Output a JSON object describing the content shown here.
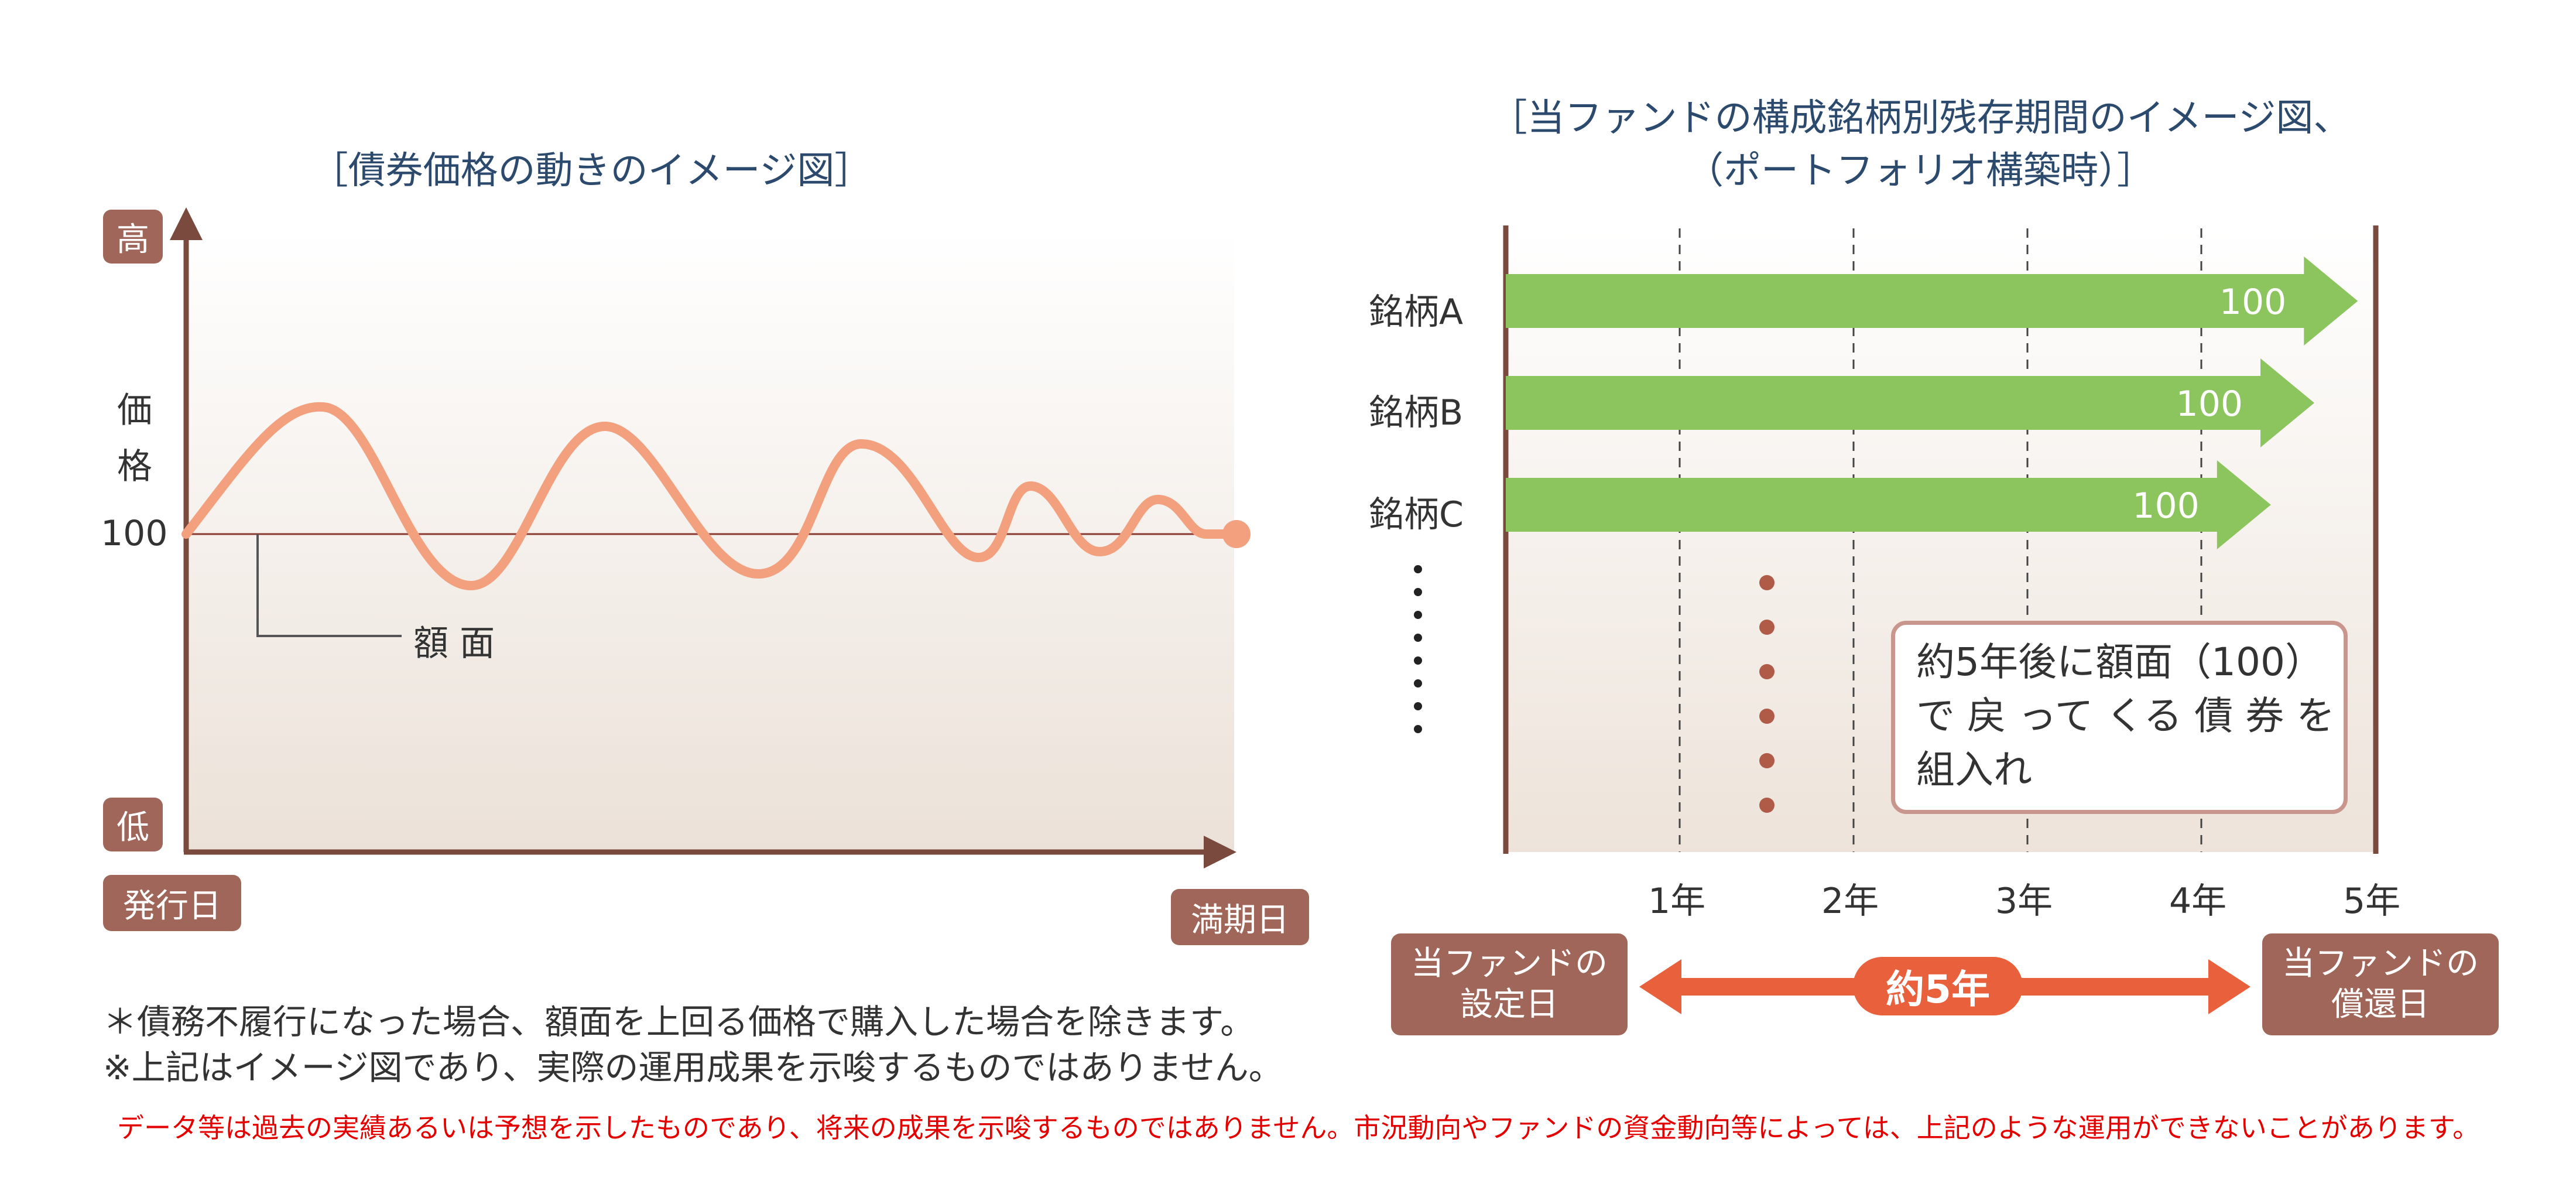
{
  "left": {
    "title": "［債券価格の動きのイメージ図］",
    "y_high": "高",
    "y_low": "低",
    "y_label_1": "価",
    "y_label_2": "格",
    "par_value": "100",
    "par_label": "額 面",
    "x_start": "発行日",
    "x_end": "満期日",
    "colors": {
      "curve": "#f2a07e",
      "axis": "#7a4a3e",
      "badge": "#a0665a"
    }
  },
  "right": {
    "title_line1": "［当ファンドの構成銘柄別残存期間のイメージ図、",
    "title_line2": "（ポートフォリオ構築時）］",
    "bars": [
      {
        "name": "銘柄A",
        "value": "100",
        "years": 4.9
      },
      {
        "name": "銘柄B",
        "value": "100",
        "years": 4.65
      },
      {
        "name": "銘柄C",
        "value": "100",
        "years": 4.4
      }
    ],
    "years": [
      "1年",
      "2年",
      "3年",
      "4年",
      "5年"
    ],
    "callout": [
      "約5年後に額面（100）",
      "で 戻 って くる 債 券 を",
      "組入れ"
    ],
    "start_box": [
      "当ファンドの",
      "設定日"
    ],
    "end_box": [
      "当ファンドの",
      "償還日"
    ],
    "period": "約5年",
    "colors": {
      "bar": "#8cc45e",
      "arrow": "#e8613c",
      "box": "#a0665a"
    }
  },
  "notes": {
    "note1": "＊債務不履行になった場合、額面を上回る価格で購入した場合を除きます。",
    "note2": "※上記はイメージ図であり、実際の運用成果を示唆するものではありません。",
    "disclaimer": "データ等は過去の実績あるいは予想を示したものであり、将来の成果を示唆するものではありません。市況動向やファンドの資金動向等によっては、上記のような運用ができないことがあります。"
  }
}
